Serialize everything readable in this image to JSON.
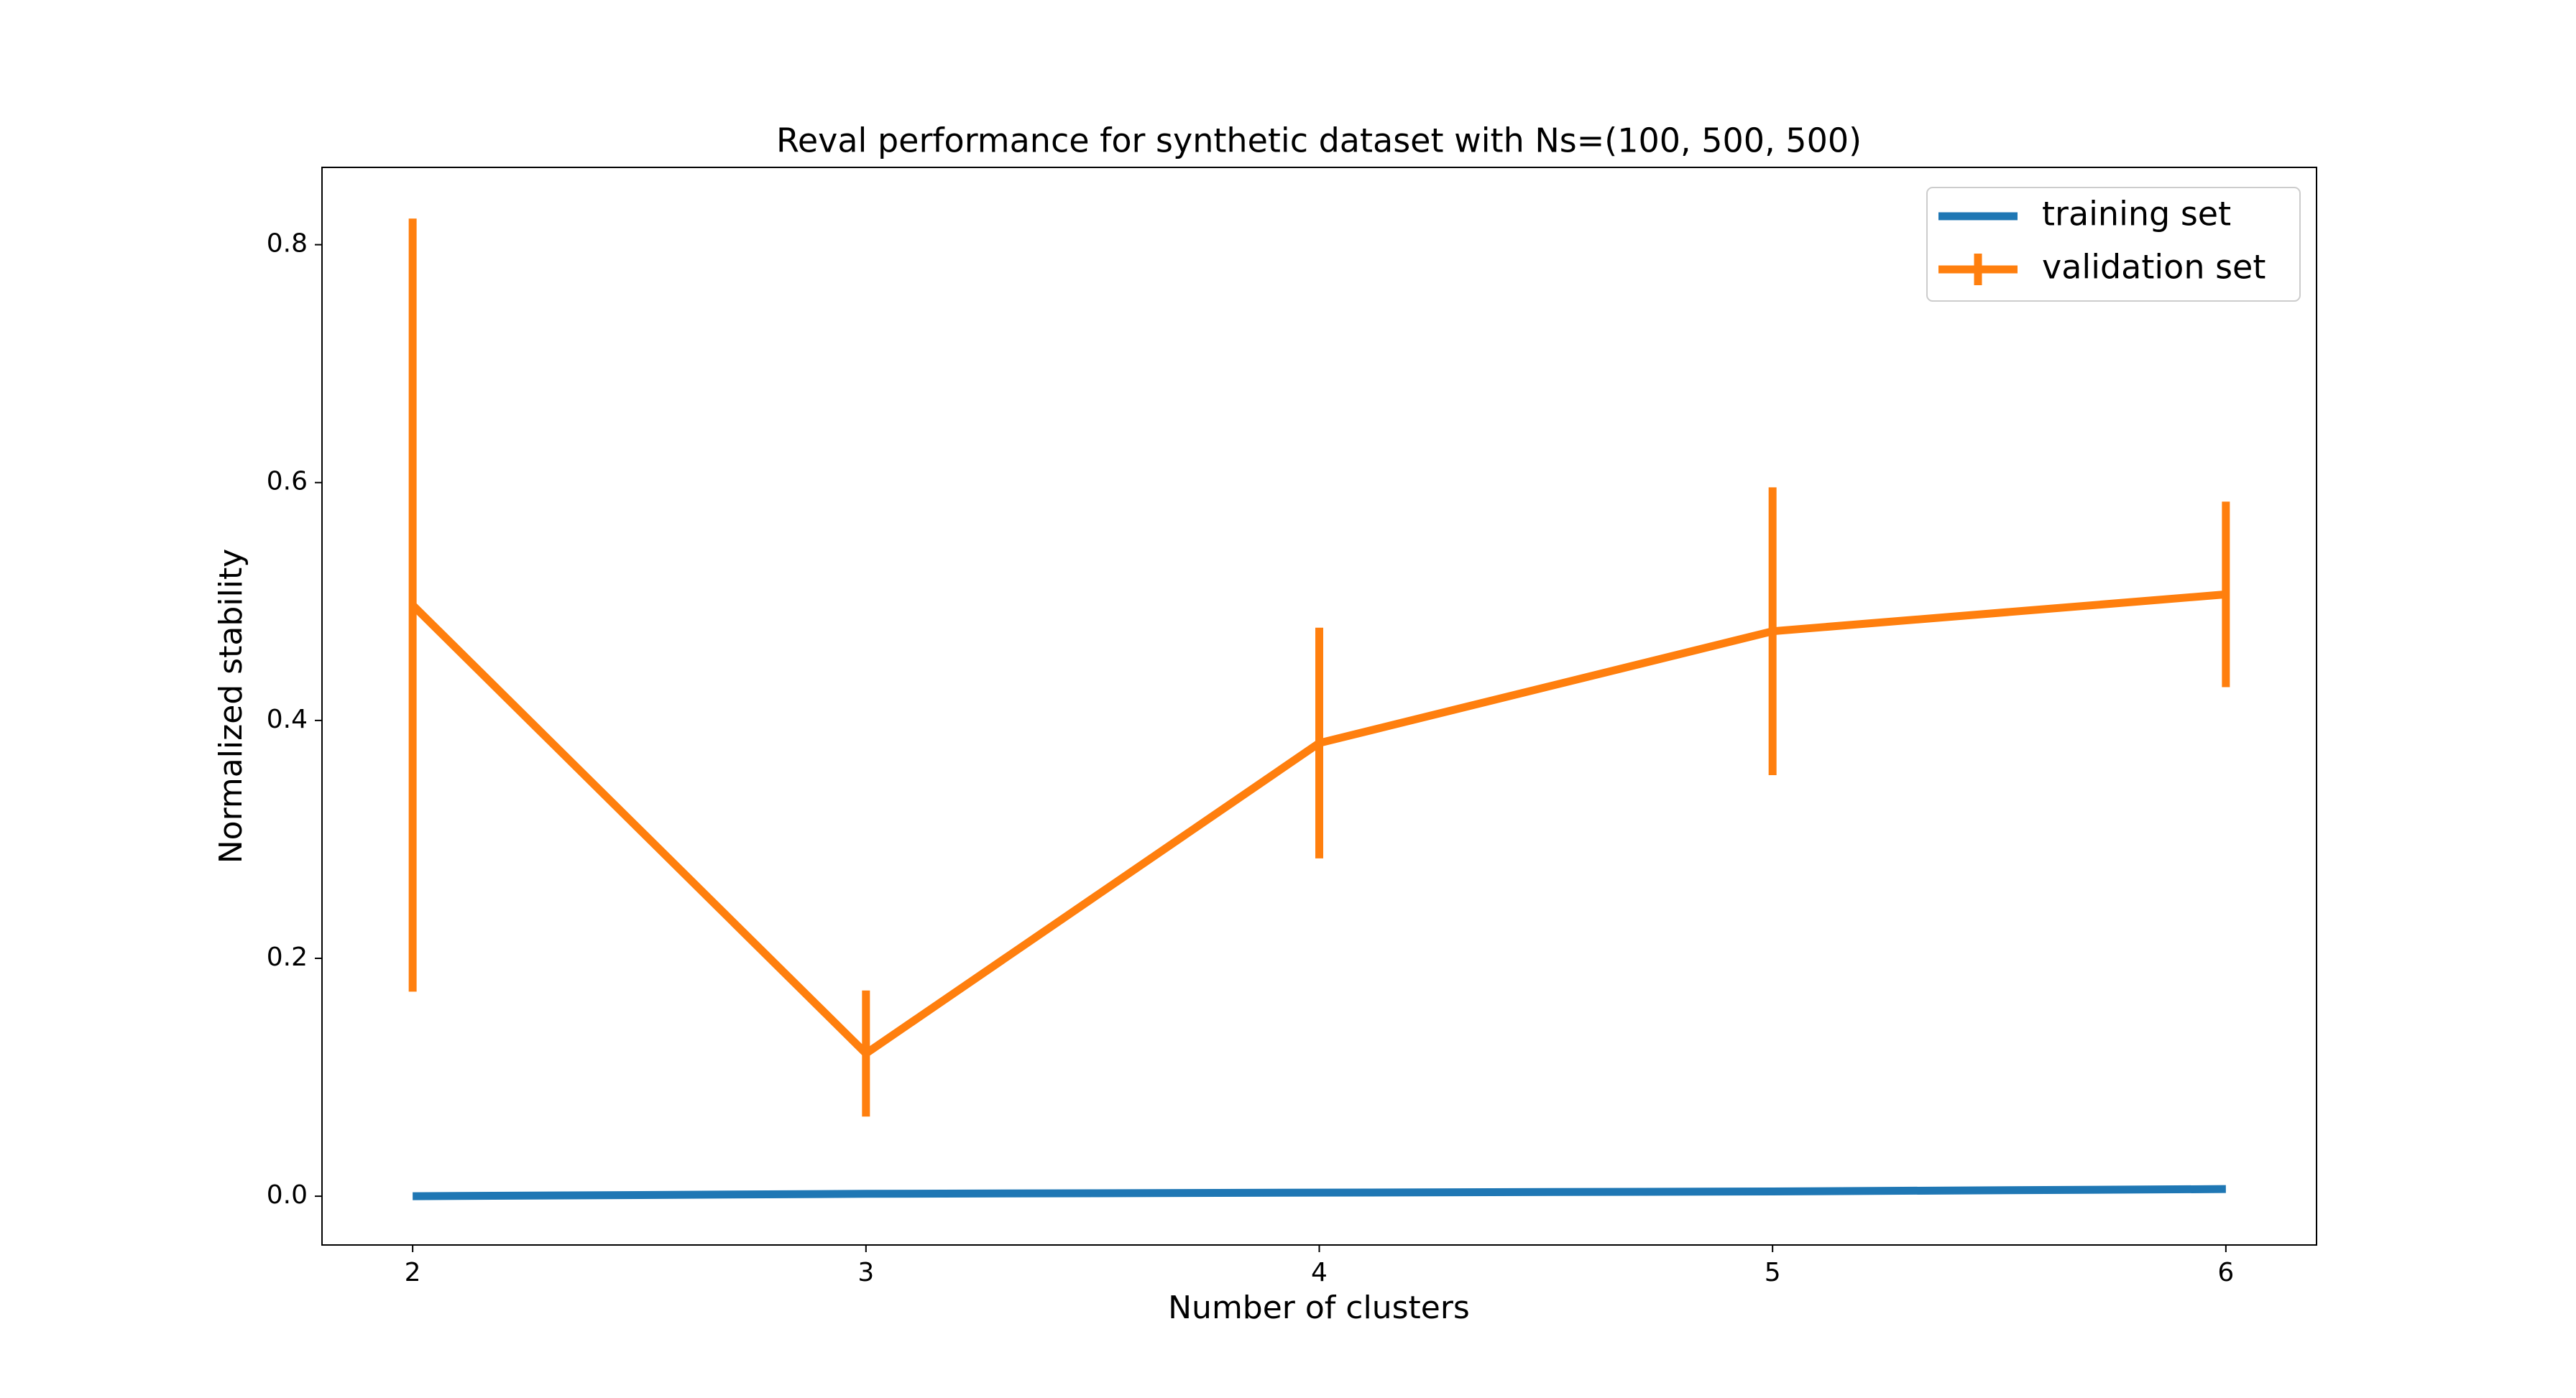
{
  "chart_data": {
    "type": "line",
    "title": "Reval performance for synthetic dataset with Ns=(100, 500, 500)",
    "x_label": "Number of clusters",
    "y_label": "Normalized stability",
    "x": [
      2,
      3,
      4,
      5,
      6
    ],
    "series": [
      {
        "name": "training set",
        "color": "#1f77b4",
        "values": [
          0.0,
          0.002,
          0.003,
          0.004,
          0.006
        ]
      },
      {
        "name": "validation set",
        "color": "#ff7f0e",
        "values": [
          0.497,
          0.12,
          0.381,
          0.475,
          0.506
        ],
        "errors": [
          0.325,
          0.053,
          0.097,
          0.121,
          0.078
        ]
      }
    ],
    "xlim": [
      1.8,
      6.2
    ],
    "xticks": [
      2,
      3,
      4,
      5,
      6
    ],
    "ylim": [
      -0.041,
      0.865
    ],
    "yticks": [
      {
        "value": 0,
        "label": "0.0"
      },
      {
        "value": 0.2,
        "label": "0.2"
      },
      {
        "value": 0.4,
        "label": "0.4"
      },
      {
        "value": 0.6,
        "label": "0.6"
      },
      {
        "value": 0.8,
        "label": "0.8"
      }
    ],
    "grid": false,
    "legend": "upper right"
  }
}
